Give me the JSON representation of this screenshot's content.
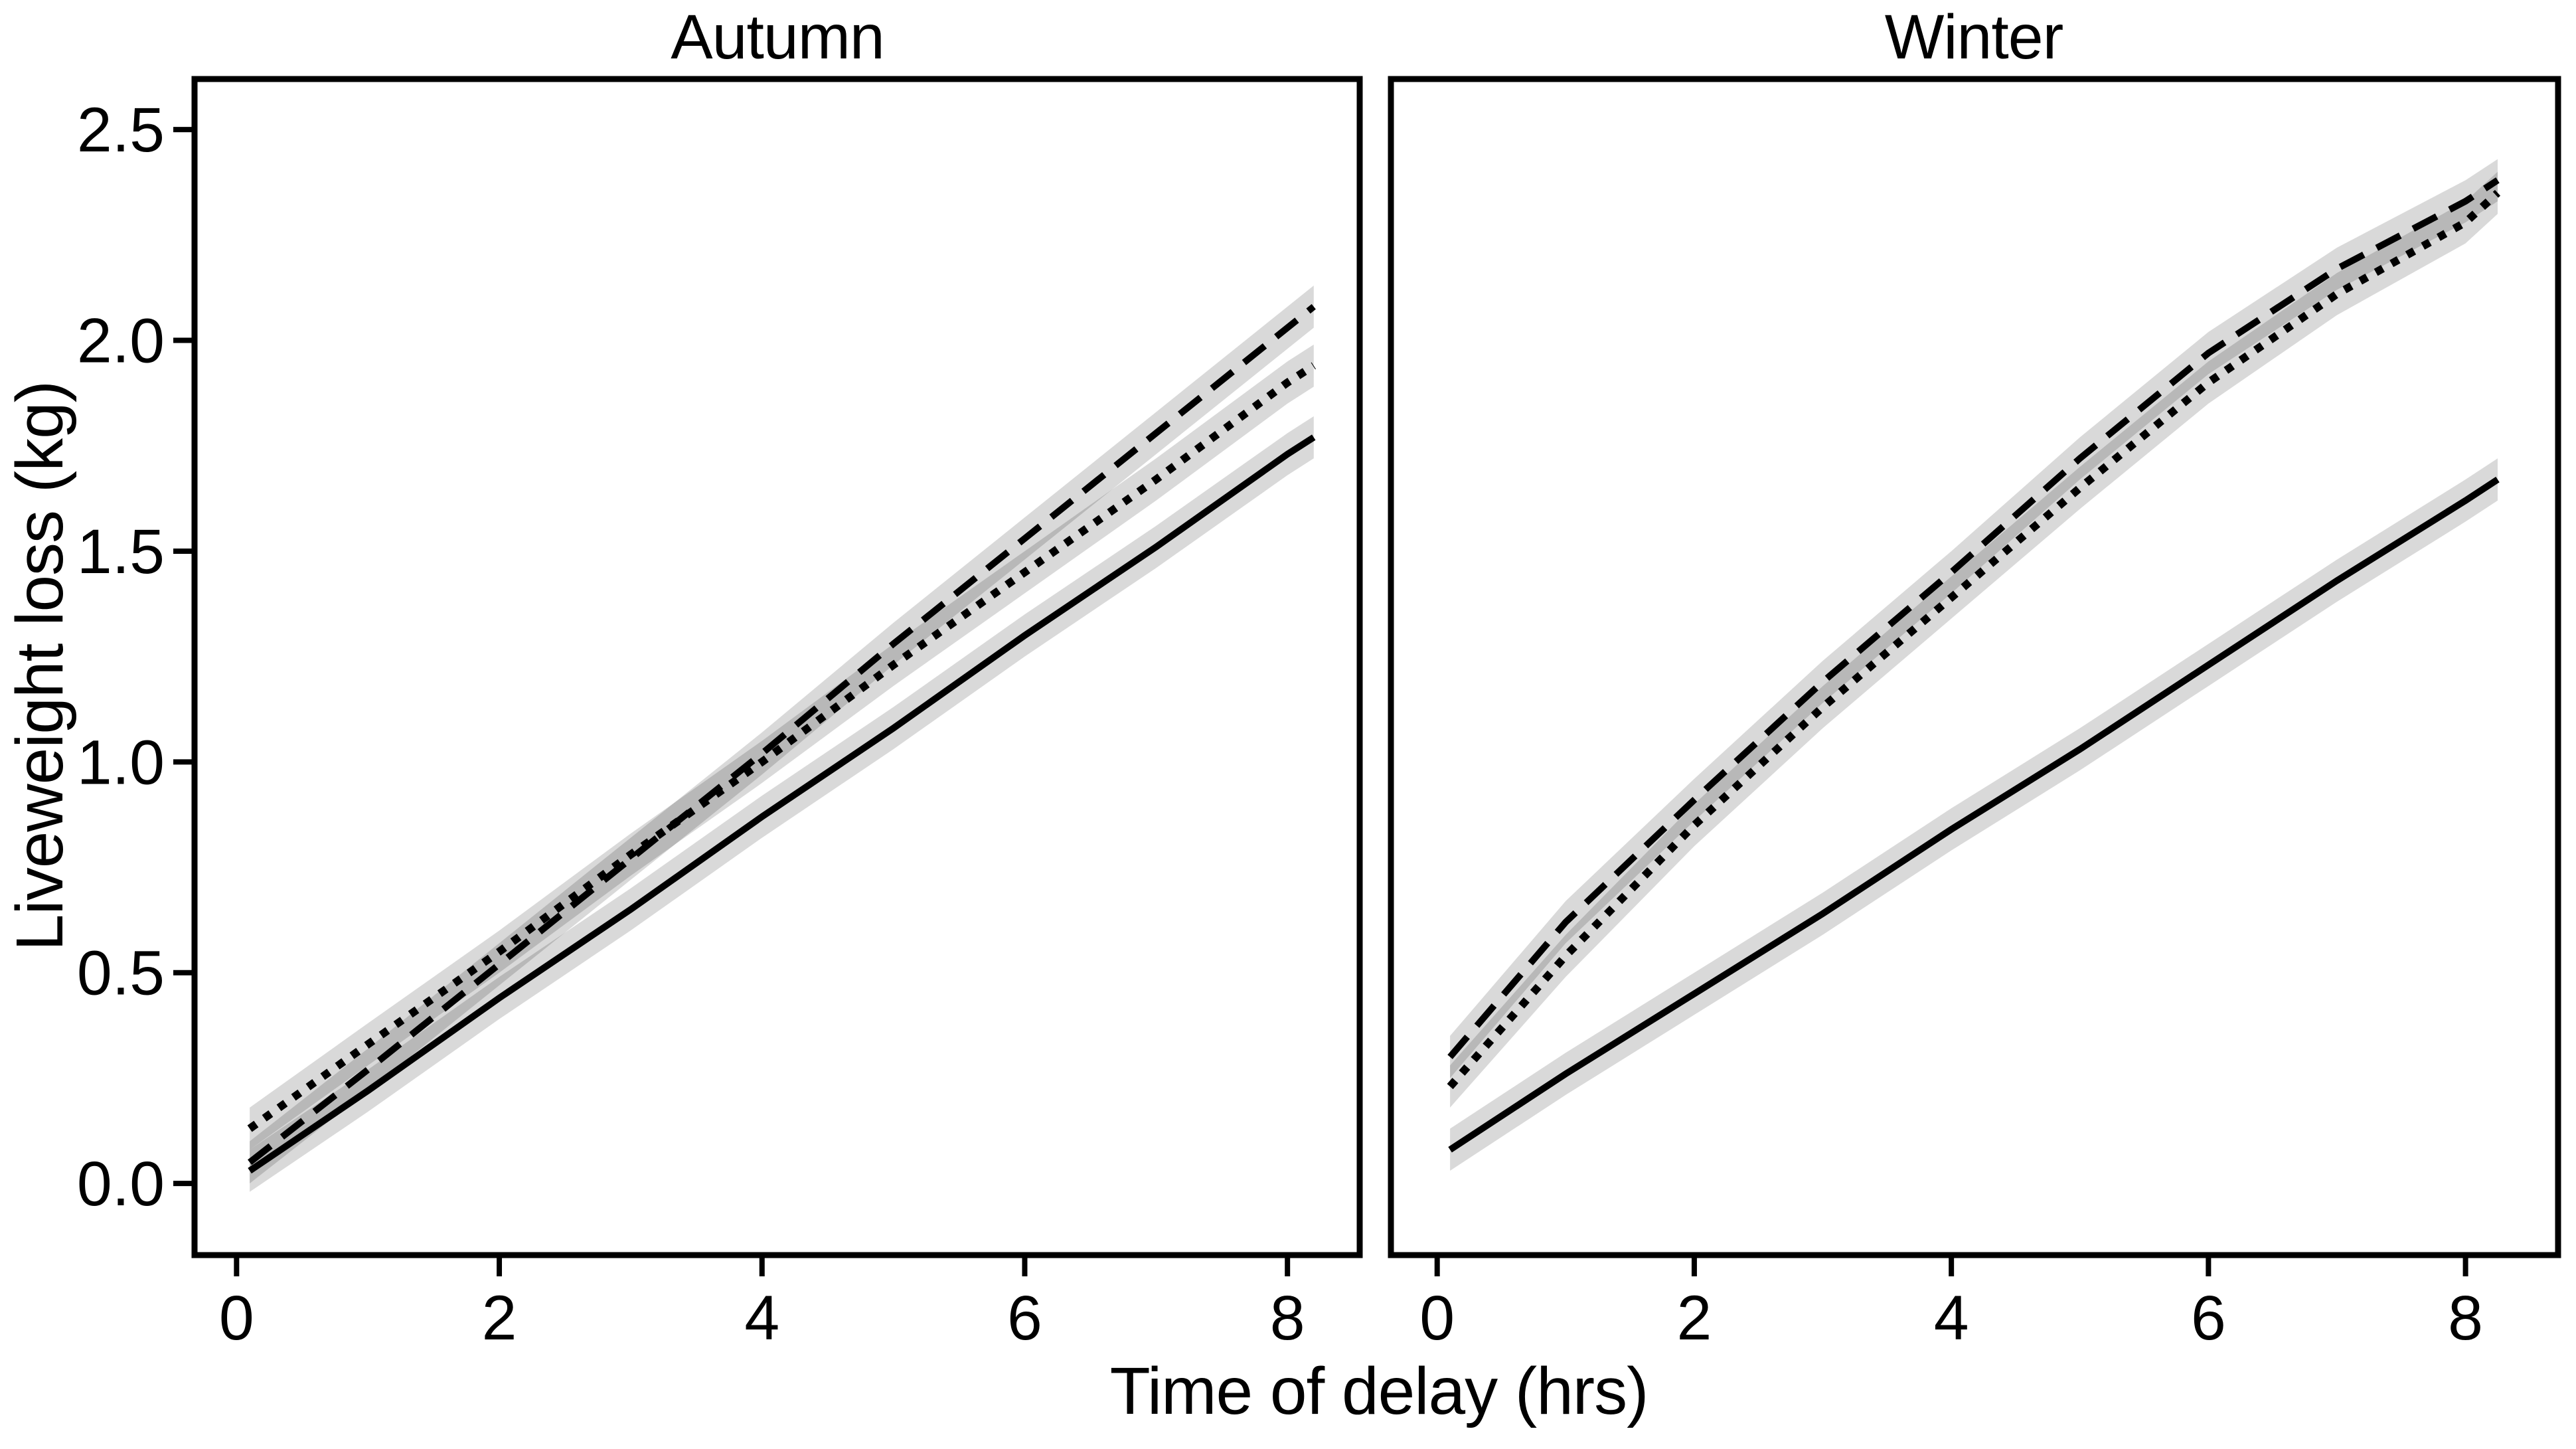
{
  "figure": {
    "x_axis_title": "Time of delay (hrs)",
    "y_axis_title": "Liveweight loss (kg)",
    "background_color": "#ffffff",
    "line_color": "#000000",
    "ribbon_color": "#d9d9d9",
    "axis_color": "#000000"
  },
  "chart_data": [
    {
      "type": "line",
      "title": "Autumn",
      "xlabel": "Time of delay (hrs)",
      "ylabel": "Liveweight loss (kg)",
      "xlim": [
        -0.32,
        8.55
      ],
      "ylim": [
        -0.17,
        2.62
      ],
      "x_ticks": [
        0,
        2,
        4,
        6,
        8
      ],
      "y_ticks": [
        0.0,
        0.5,
        1.0,
        1.5,
        2.0,
        2.5
      ],
      "grid": false,
      "legend": "none",
      "ribbon_halfwidth": 0.05,
      "x": [
        0.1,
        1,
        2,
        3,
        4,
        5,
        6,
        7,
        8,
        8.2
      ],
      "series": [
        {
          "name": "solid-line",
          "linestyle": "solid",
          "values": [
            0.03,
            0.22,
            0.44,
            0.65,
            0.87,
            1.08,
            1.3,
            1.51,
            1.73,
            1.77
          ]
        },
        {
          "name": "dashed-line",
          "linestyle": "dashed",
          "values": [
            0.05,
            0.27,
            0.52,
            0.77,
            1.02,
            1.28,
            1.53,
            1.78,
            2.03,
            2.08
          ]
        },
        {
          "name": "dotted-line",
          "linestyle": "dotted",
          "values": [
            0.13,
            0.33,
            0.55,
            0.78,
            1.0,
            1.23,
            1.45,
            1.67,
            1.9,
            1.94
          ]
        }
      ]
    },
    {
      "type": "line",
      "title": "Winter",
      "xlabel": "Time of delay (hrs)",
      "ylabel": "Liveweight loss (kg)",
      "xlim": [
        -0.36,
        8.72
      ],
      "ylim": [
        -0.17,
        2.62
      ],
      "x_ticks": [
        0,
        2,
        4,
        6,
        8
      ],
      "y_ticks": [
        0.0,
        0.5,
        1.0,
        1.5,
        2.0,
        2.5
      ],
      "grid": false,
      "legend": "none",
      "ribbon_halfwidth": 0.05,
      "x": [
        0.1,
        1,
        2,
        3,
        4,
        5,
        6,
        7,
        8,
        8.25
      ],
      "series": [
        {
          "name": "solid-line",
          "linestyle": "solid",
          "values": [
            0.08,
            0.26,
            0.45,
            0.64,
            0.84,
            1.03,
            1.23,
            1.43,
            1.62,
            1.67
          ]
        },
        {
          "name": "dashed-line",
          "linestyle": "dashed",
          "values": [
            0.3,
            0.62,
            0.91,
            1.19,
            1.45,
            1.72,
            1.97,
            2.17,
            2.33,
            2.38
          ]
        },
        {
          "name": "dotted-line",
          "linestyle": "dotted",
          "values": [
            0.23,
            0.54,
            0.85,
            1.13,
            1.39,
            1.65,
            1.9,
            2.11,
            2.28,
            2.35
          ]
        }
      ]
    }
  ]
}
